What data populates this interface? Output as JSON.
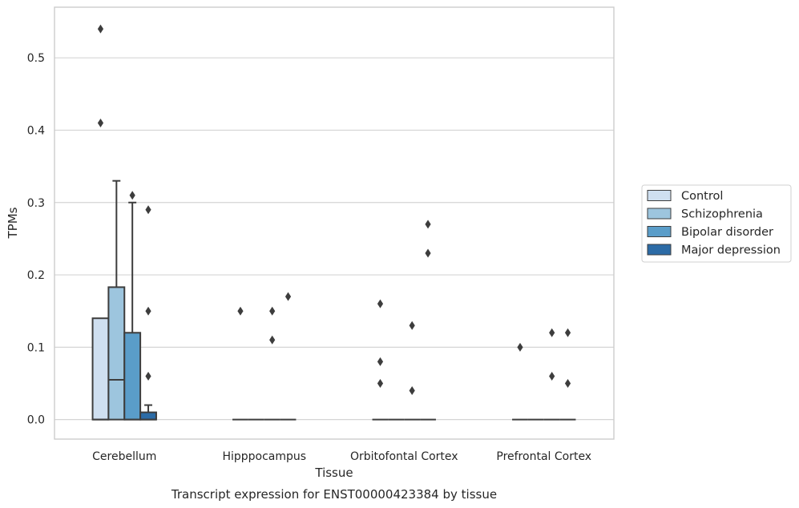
{
  "chart_data": {
    "type": "box",
    "title": "",
    "caption": "Transcript expression for ENST00000423384 by tissue",
    "xlabel": "Tissue",
    "ylabel": "TPMs",
    "ylim": [
      -0.027,
      0.57
    ],
    "yticks": [
      0.0,
      0.1,
      0.2,
      0.3,
      0.4,
      0.5
    ],
    "ytick_labels": [
      "0.0",
      "0.1",
      "0.2",
      "0.3",
      "0.4",
      "0.5"
    ],
    "grid": "horizontal",
    "legend_position": "right",
    "categories": [
      "Cerebellum",
      "Hipppocampus",
      "Orbitofontal Cortex",
      "Prefrontal Cortex"
    ],
    "series": [
      {
        "name": "Control",
        "color": "#cfdff0",
        "boxes": [
          {
            "category": "Cerebellum",
            "q1": 0.0,
            "median": 0.0,
            "q3": 0.14,
            "whisker_low": 0.0,
            "whisker_high": 0.14,
            "outliers": [
              0.41,
              0.54
            ]
          },
          {
            "category": "Hipppocampus",
            "q1": 0.0,
            "median": 0.0,
            "q3": 0.0,
            "whisker_low": 0.0,
            "whisker_high": 0.0,
            "outliers": [
              0.15
            ]
          },
          {
            "category": "Orbitofontal Cortex",
            "q1": 0.0,
            "median": 0.0,
            "q3": 0.0,
            "whisker_low": 0.0,
            "whisker_high": 0.0,
            "outliers": [
              0.05,
              0.08,
              0.16
            ]
          },
          {
            "category": "Prefrontal Cortex",
            "q1": 0.0,
            "median": 0.0,
            "q3": 0.0,
            "whisker_low": 0.0,
            "whisker_high": 0.0,
            "outliers": [
              0.1
            ]
          }
        ]
      },
      {
        "name": "Schizophrenia",
        "color": "#9dc5de",
        "boxes": [
          {
            "category": "Cerebellum",
            "q1": 0.0,
            "median": 0.055,
            "q3": 0.183,
            "whisker_low": 0.0,
            "whisker_high": 0.33,
            "outliers": []
          },
          {
            "category": "Hipppocampus",
            "q1": 0.0,
            "median": 0.0,
            "q3": 0.0,
            "whisker_low": 0.0,
            "whisker_high": 0.0,
            "outliers": []
          },
          {
            "category": "Orbitofontal Cortex",
            "q1": 0.0,
            "median": 0.0,
            "q3": 0.0,
            "whisker_low": 0.0,
            "whisker_high": 0.0,
            "outliers": []
          },
          {
            "category": "Prefrontal Cortex",
            "q1": 0.0,
            "median": 0.0,
            "q3": 0.0,
            "whisker_low": 0.0,
            "whisker_high": 0.0,
            "outliers": []
          }
        ]
      },
      {
        "name": "Bipolar disorder",
        "color": "#5a9dc9",
        "boxes": [
          {
            "category": "Cerebellum",
            "q1": 0.0,
            "median": 0.0,
            "q3": 0.12,
            "whisker_low": 0.0,
            "whisker_high": 0.3,
            "outliers": [
              0.31
            ]
          },
          {
            "category": "Hipppocampus",
            "q1": 0.0,
            "median": 0.0,
            "q3": 0.0,
            "whisker_low": 0.0,
            "whisker_high": 0.0,
            "outliers": [
              0.11,
              0.15
            ]
          },
          {
            "category": "Orbitofontal Cortex",
            "q1": 0.0,
            "median": 0.0,
            "q3": 0.0,
            "whisker_low": 0.0,
            "whisker_high": 0.0,
            "outliers": [
              0.04,
              0.13
            ]
          },
          {
            "category": "Prefrontal Cortex",
            "q1": 0.0,
            "median": 0.0,
            "q3": 0.0,
            "whisker_low": 0.0,
            "whisker_high": 0.0,
            "outliers": [
              0.06,
              0.12
            ]
          }
        ]
      },
      {
        "name": "Major depression",
        "color": "#2c6ba6",
        "boxes": [
          {
            "category": "Cerebellum",
            "q1": 0.0,
            "median": 0.0,
            "q3": 0.01,
            "whisker_low": 0.0,
            "whisker_high": 0.02,
            "outliers": [
              0.06,
              0.15,
              0.29
            ]
          },
          {
            "category": "Hipppocampus",
            "q1": 0.0,
            "median": 0.0,
            "q3": 0.0,
            "whisker_low": 0.0,
            "whisker_high": 0.0,
            "outliers": [
              0.17
            ]
          },
          {
            "category": "Orbitofontal Cortex",
            "q1": 0.0,
            "median": 0.0,
            "q3": 0.0,
            "whisker_low": 0.0,
            "whisker_high": 0.0,
            "outliers": [
              0.23,
              0.27
            ]
          },
          {
            "category": "Prefrontal Cortex",
            "q1": 0.0,
            "median": 0.0,
            "q3": 0.0,
            "whisker_low": 0.0,
            "whisker_high": 0.0,
            "outliers": [
              0.05,
              0.12
            ]
          }
        ]
      }
    ]
  }
}
